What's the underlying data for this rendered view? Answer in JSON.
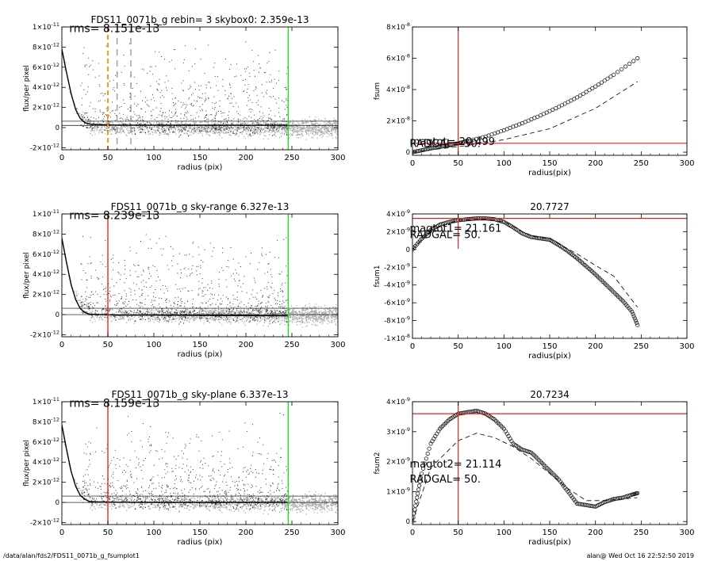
{
  "footer": {
    "path": "/data/alan/fds2/FDS11_0071b_g_fsumplot1",
    "stamp": "alan@  Wed Oct 16 22:52:50 2019"
  },
  "chart_data": [
    {
      "id": "p1",
      "type": "scatter",
      "title": "FDS11_0071b_g rebin= 3    skybox0:  2.359e-13",
      "xlabel": "radius (pix)",
      "ylabel": "flux/per pixel",
      "xlim": [
        0,
        300
      ],
      "ylim": [
        -2.2e-12,
        1e-11
      ],
      "xticks": [
        0,
        50,
        100,
        150,
        200,
        250,
        300
      ],
      "yticks": [
        {
          "v": 1e-11,
          "m": "1×10",
          "e": "-11"
        },
        {
          "v": 8e-12,
          "m": "8×10",
          "e": "-12"
        },
        {
          "v": 6e-12,
          "m": "6×10",
          "e": "-12"
        },
        {
          "v": 4e-12,
          "m": "4×10",
          "e": "-12"
        },
        {
          "v": 2e-12,
          "m": "2×10",
          "e": "-12"
        },
        {
          "v": 0,
          "m": "0",
          "e": ""
        },
        {
          "v": -2e-12,
          "m": "-2×10",
          "e": "-12"
        }
      ],
      "annotations": [
        {
          "text": "rms= 8.151e-13",
          "x": 8,
          "y": 9.5e-12
        }
      ],
      "hlines": [
        2.2e-13,
        6.4e-13
      ],
      "vlines": [
        {
          "x": 50,
          "color": "#ff8c00",
          "dash": "dashed",
          "bold": true
        },
        {
          "x": 60,
          "color": "#999999",
          "dash": "dashed"
        },
        {
          "x": 75,
          "color": "#999999",
          "dash": "dashed"
        },
        {
          "x": 246,
          "color": "#22dd22",
          "dash": "solid"
        }
      ],
      "profile": {
        "x": [
          0,
          5,
          10,
          15,
          20,
          25,
          30,
          40,
          60,
          100,
          150,
          200,
          246
        ],
        "y": [
          7.8e-12,
          5.5e-12,
          3.4e-12,
          1.8e-12,
          9e-13,
          5e-13,
          3.5e-13,
          3e-13,
          2.5e-13,
          2.5e-13,
          2.4e-13,
          2.3e-13,
          2.5e-13
        ]
      }
    },
    {
      "id": "p2",
      "type": "line",
      "title": "",
      "xlabel": "radius(pix)",
      "ylabel": "fsum",
      "xlim": [
        0,
        300
      ],
      "ylim": [
        -2e-09,
        8e-08
      ],
      "xticks": [
        0,
        50,
        100,
        150,
        200,
        250,
        300
      ],
      "yticks": [
        {
          "v": 8e-08,
          "m": "8×10",
          "e": "-8"
        },
        {
          "v": 6e-08,
          "m": "6×10",
          "e": "-8"
        },
        {
          "v": 4e-08,
          "m": "4×10",
          "e": "-8"
        },
        {
          "v": 2e-08,
          "m": "2×10",
          "e": "-8"
        },
        {
          "v": 0,
          "m": "0",
          "e": ""
        }
      ],
      "annotations": [
        {
          "text": "magtot= 20.499",
          "x": -3,
          "y": 4.5e-09
        },
        {
          "text": "RADGAL=    50.",
          "x": -3,
          "y": 3.3e-09
        }
      ],
      "hlines_red": [
        5.7e-09
      ],
      "vlines_red": [
        50
      ],
      "series": [
        {
          "style": "circles",
          "x": [
            0,
            10,
            20,
            30,
            40,
            50,
            60,
            80,
            100,
            120,
            140,
            160,
            180,
            200,
            220,
            246
          ],
          "y": [
            0,
            1.2e-09,
            2.5e-09,
            3.5e-09,
            4.5e-09,
            5.7e-09,
            7e-09,
            1e-08,
            1.4e-08,
            1.85e-08,
            2.35e-08,
            2.9e-08,
            3.5e-08,
            4.2e-08,
            4.95e-08,
            6e-08
          ]
        },
        {
          "style": "dashed",
          "x": [
            0,
            20,
            50,
            80,
            100,
            150,
            200,
            246
          ],
          "y": [
            0,
            1.5e-09,
            3.5e-09,
            6e-09,
            8e-09,
            1.5e-08,
            2.8e-08,
            4.5e-08
          ]
        }
      ]
    },
    {
      "id": "p3",
      "type": "scatter",
      "title": "FDS11_0071b_g sky-range  6.327e-13",
      "xlabel": "radius (pix)",
      "ylabel": "flux/per pixel",
      "xlim": [
        0,
        300
      ],
      "ylim": [
        -2.2e-12,
        1e-11
      ],
      "xticks": [
        0,
        50,
        100,
        150,
        200,
        250,
        300
      ],
      "yticks": [
        {
          "v": 1e-11,
          "m": "1×10",
          "e": "-11"
        },
        {
          "v": 8e-12,
          "m": "8×10",
          "e": "-12"
        },
        {
          "v": 6e-12,
          "m": "6×10",
          "e": "-12"
        },
        {
          "v": 4e-12,
          "m": "4×10",
          "e": "-12"
        },
        {
          "v": 2e-12,
          "m": "2×10",
          "e": "-12"
        },
        {
          "v": 0,
          "m": "0",
          "e": ""
        },
        {
          "v": -2e-12,
          "m": "-2×10",
          "e": "-12"
        }
      ],
      "annotations": [
        {
          "text": "rms= 8.239e-13",
          "x": 8,
          "y": 9.5e-12
        }
      ],
      "hlines": [
        0,
        6.3e-13
      ],
      "vlines": [
        {
          "x": 50,
          "color": "#ee2222",
          "dash": "solid"
        },
        {
          "x": 246,
          "color": "#22dd22",
          "dash": "solid"
        }
      ],
      "profile": {
        "x": [
          0,
          5,
          10,
          15,
          20,
          25,
          30,
          40,
          60,
          100,
          150,
          200,
          246
        ],
        "y": [
          7.6e-12,
          5.2e-12,
          3e-12,
          1.5e-12,
          6e-13,
          2e-13,
          5e-14,
          0,
          -5e-14,
          -5e-14,
          -8e-14,
          -1e-13,
          -1.2e-13
        ]
      }
    },
    {
      "id": "p4",
      "type": "line",
      "title": "20.7727",
      "xlabel": "radius(pix)",
      "ylabel": "fsum1",
      "xlim": [
        0,
        300
      ],
      "ylim": [
        -1e-08,
        4e-09
      ],
      "xticks": [
        0,
        50,
        100,
        150,
        200,
        250,
        300
      ],
      "yticks": [
        {
          "v": 4e-09,
          "m": "4×10",
          "e": "-9"
        },
        {
          "v": 2e-09,
          "m": "2×10",
          "e": "-9"
        },
        {
          "v": 0,
          "m": "0",
          "e": ""
        },
        {
          "v": -2e-09,
          "m": "-2×10",
          "e": "-9"
        },
        {
          "v": -4e-09,
          "m": "-4×10",
          "e": "-9"
        },
        {
          "v": -6e-09,
          "m": "-6×10",
          "e": "-9"
        },
        {
          "v": -8e-09,
          "m": "-8×10",
          "e": "-9"
        },
        {
          "v": -1e-08,
          "m": "-1×10",
          "e": "-8"
        }
      ],
      "annotations": [
        {
          "text": "magtot1=  21.161",
          "x": -3,
          "y": 2e-09
        },
        {
          "text": "RADGAL=     50.",
          "x": -3,
          "y": 1.3e-09
        }
      ],
      "hlines_red": [
        3.5e-09
      ],
      "vlines_red": [
        50
      ],
      "vline_ymax": 3.5e-09,
      "series": [
        {
          "style": "circles",
          "x": [
            0,
            10,
            20,
            30,
            40,
            50,
            60,
            70,
            80,
            90,
            100,
            110,
            120,
            130,
            140,
            150,
            160,
            170,
            180,
            190,
            200,
            210,
            220,
            230,
            240,
            246
          ],
          "y": [
            0,
            1.2e-09,
            2.2e-09,
            2.8e-09,
            3.1e-09,
            3.3e-09,
            3.4e-09,
            3.5e-09,
            3.5e-09,
            3.4e-09,
            3.1e-09,
            2.5e-09,
            1.8e-09,
            1.4e-09,
            1.25e-09,
            1.1e-09,
            5e-10,
            -2e-10,
            -1e-09,
            -1.9e-09,
            -2.8e-09,
            -3.8e-09,
            -4.8e-09,
            -5.8e-09,
            -7e-09,
            -8.5e-09
          ]
        },
        {
          "style": "dashed",
          "x": [
            0,
            20,
            50,
            80,
            100,
            130,
            150,
            180,
            200,
            220,
            246
          ],
          "y": [
            0,
            2.2e-09,
            3.3e-09,
            3.4e-09,
            3.1e-09,
            1.5e-09,
            1.2e-09,
            -5e-10,
            -1.8e-09,
            -3e-09,
            -6.5e-09
          ]
        }
      ]
    },
    {
      "id": "p5",
      "type": "scatter",
      "title": "FDS11_0071b_g sky-plane  6.337e-13",
      "xlabel": "radius (pix)",
      "ylabel": "flux/per pixel",
      "xlim": [
        0,
        300
      ],
      "ylim": [
        -2.2e-12,
        1e-11
      ],
      "xticks": [
        0,
        50,
        100,
        150,
        200,
        250,
        300
      ],
      "yticks": [
        {
          "v": 1e-11,
          "m": "1×10",
          "e": "-11"
        },
        {
          "v": 8e-12,
          "m": "8×10",
          "e": "-12"
        },
        {
          "v": 6e-12,
          "m": "6×10",
          "e": "-12"
        },
        {
          "v": 4e-12,
          "m": "4×10",
          "e": "-12"
        },
        {
          "v": 2e-12,
          "m": "2×10",
          "e": "-12"
        },
        {
          "v": 0,
          "m": "0",
          "e": ""
        },
        {
          "v": -2e-12,
          "m": "-2×10",
          "e": "-12"
        }
      ],
      "annotations": [
        {
          "text": "rms= 8.159e-13",
          "x": 8,
          "y": 9.5e-12
        }
      ],
      "hlines": [
        0,
        6.3e-13
      ],
      "vlines": [
        {
          "x": 50,
          "color": "#ee2222",
          "dash": "solid"
        },
        {
          "x": 246,
          "color": "#22dd22",
          "dash": "solid"
        }
      ],
      "profile": {
        "x": [
          0,
          5,
          10,
          15,
          20,
          25,
          30,
          40,
          60,
          100,
          150,
          200,
          246
        ],
        "y": [
          7.7e-12,
          5.3e-12,
          3.1e-12,
          1.6e-12,
          7e-13,
          3e-13,
          1e-13,
          5e-14,
          2e-14,
          0,
          0,
          0,
          1e-14
        ]
      }
    },
    {
      "id": "p6",
      "type": "line",
      "title": "20.7234",
      "xlabel": "radius(pix)",
      "ylabel": "fsum2",
      "xlim": [
        0,
        300
      ],
      "ylim": [
        -1e-10,
        4e-09
      ],
      "xticks": [
        0,
        50,
        100,
        150,
        200,
        250,
        300
      ],
      "yticks": [
        {
          "v": 4e-09,
          "m": "4×10",
          "e": "-9"
        },
        {
          "v": 3e-09,
          "m": "3×10",
          "e": "-9"
        },
        {
          "v": 2e-09,
          "m": "2×10",
          "e": "-9"
        },
        {
          "v": 1e-09,
          "m": "1×10",
          "e": "-9"
        },
        {
          "v": 0,
          "m": "0",
          "e": ""
        }
      ],
      "annotations": [
        {
          "text": "magtot2=  21.114",
          "x": -3,
          "y": 1.8e-09
        },
        {
          "text": "RADGAL=     50.",
          "x": -3,
          "y": 1.3e-09
        }
      ],
      "hlines_red": [
        3.6e-09
      ],
      "vlines_red": [
        50
      ],
      "series": [
        {
          "style": "circles",
          "x": [
            0,
            5,
            10,
            20,
            30,
            40,
            50,
            60,
            70,
            80,
            90,
            100,
            110,
            120,
            130,
            140,
            150,
            160,
            170,
            180,
            190,
            200,
            210,
            220,
            230,
            240,
            246
          ],
          "y": [
            0,
            8e-10,
            1.6e-09,
            2.6e-09,
            3.1e-09,
            3.4e-09,
            3.6e-09,
            3.65e-09,
            3.7e-09,
            3.6e-09,
            3.4e-09,
            3.1e-09,
            2.6e-09,
            2.4e-09,
            2.3e-09,
            2e-09,
            1.7e-09,
            1.4e-09,
            1e-09,
            6e-10,
            5.5e-10,
            5e-10,
            6.5e-10,
            7.5e-10,
            8e-10,
            9e-10,
            9.5e-10
          ]
        },
        {
          "style": "dashed",
          "x": [
            0,
            20,
            50,
            70,
            90,
            110,
            130,
            150,
            170,
            190,
            210,
            246
          ],
          "y": [
            0,
            1.8e-09,
            2.7e-09,
            2.95e-09,
            2.8e-09,
            2.5e-09,
            2.1e-09,
            1.6e-09,
            1.1e-09,
            7e-10,
            7e-10,
            8e-10
          ]
        }
      ]
    }
  ]
}
